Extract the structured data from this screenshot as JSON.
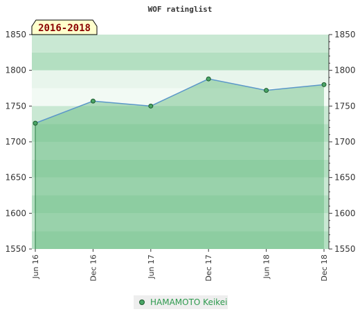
{
  "chart_data": {
    "type": "area",
    "title": "WOF ratinglist",
    "period_label": "2016-2018",
    "categories": [
      "Jun 16",
      "Dec 16",
      "Jun 17",
      "Dec 17",
      "Jun 18",
      "Dec 18"
    ],
    "series": [
      {
        "name": "HAMAMOTO Keikei",
        "values": [
          1726,
          1757,
          1750,
          1788,
          1772,
          1780
        ]
      }
    ],
    "ylim": [
      1550,
      1850
    ],
    "y_ticks": [
      1550,
      1600,
      1650,
      1700,
      1750,
      1800,
      1850
    ],
    "y_axes": "left-and-right",
    "grid": "horizontal bands",
    "legend_position": "bottom"
  },
  "colors": {
    "band_light": "#b3dfc1",
    "band_light_alt": "#c9e8d3",
    "band_mid": "#8fce9e",
    "band_dark": "#7cc594",
    "area_fill": "#5fb77a",
    "line": "#5b97c9",
    "marker": "#4aa566",
    "marker_stroke": "#1d5a2e",
    "period_bg": "#ffffcc",
    "legend_bg": "#eeeeee",
    "legend_text": "#2e9a4e"
  },
  "icons": {
    "legend_marker": "circle-marker-icon"
  }
}
